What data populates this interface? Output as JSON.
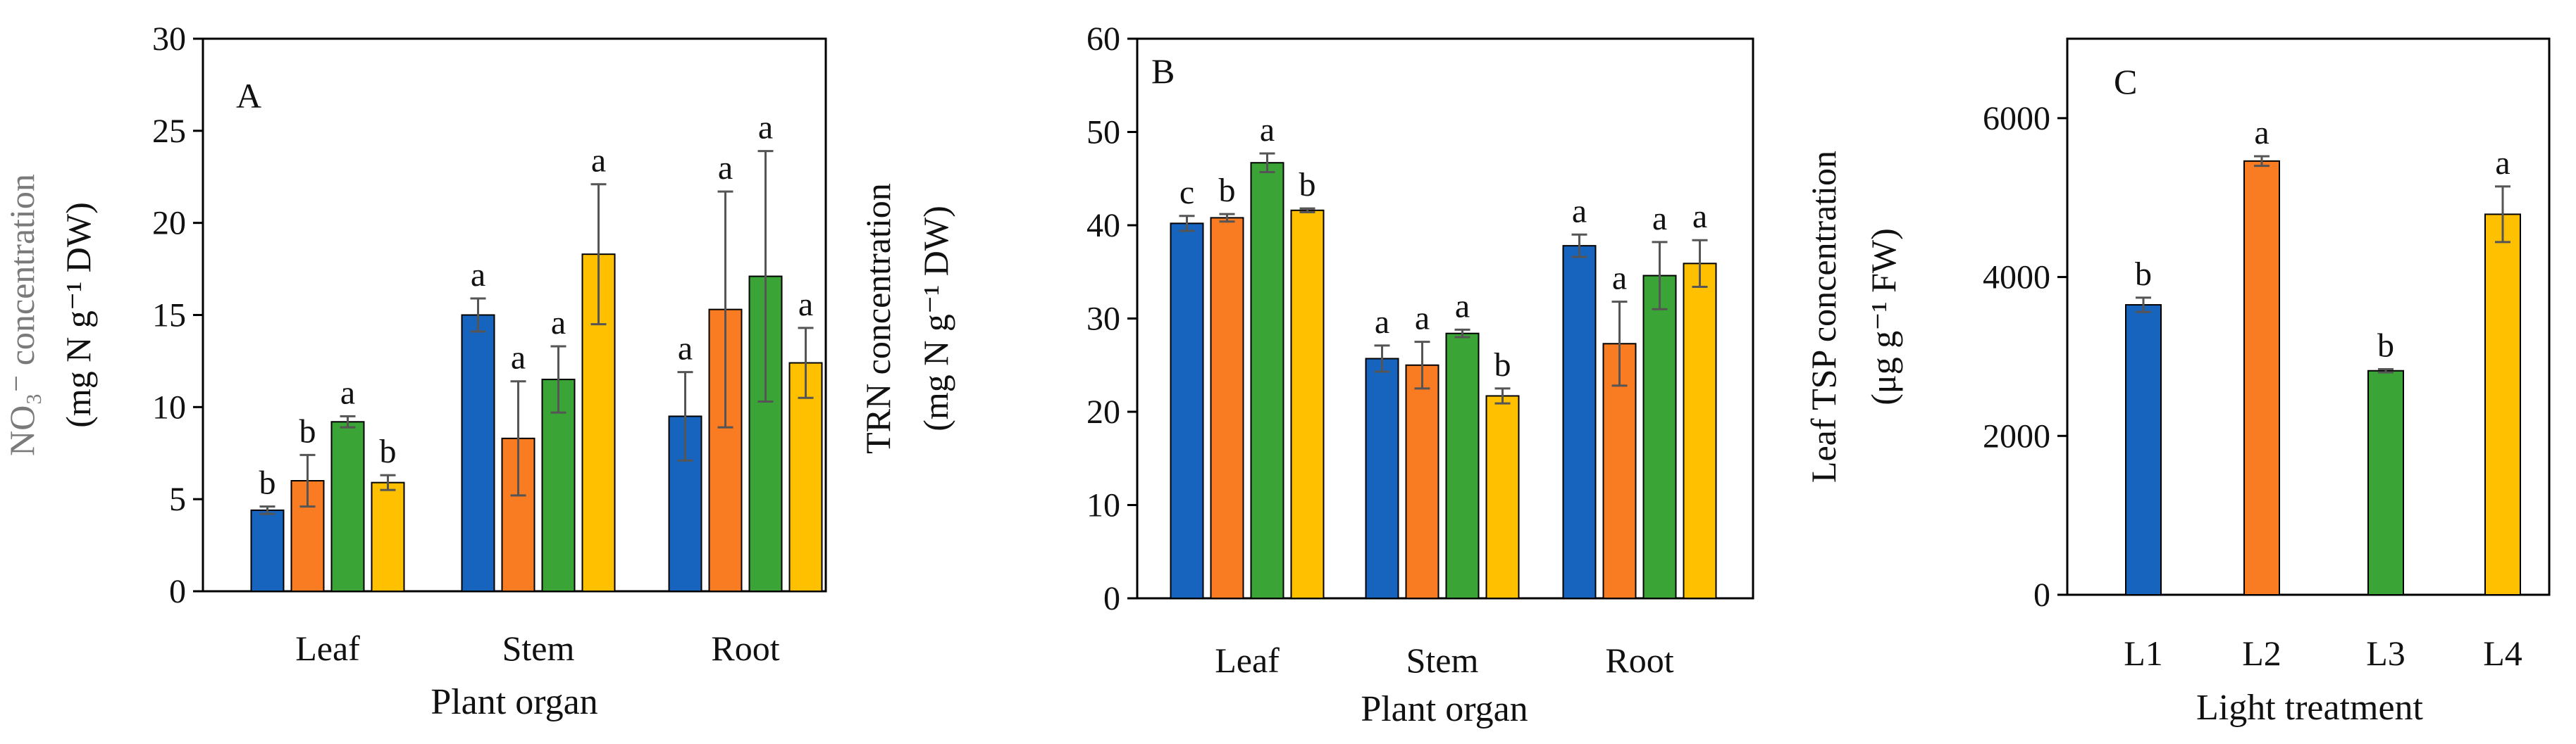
{
  "colors": {
    "L1": "#1764BE",
    "L2": "#F97B22",
    "L3": "#3AA536",
    "L4": "#FFC000",
    "axis": "#000000",
    "error_bar": "#555555",
    "ylabel_grey": "#7a7a7a"
  },
  "chart_data": [
    {
      "type": "bar",
      "panel": "A",
      "categories": [
        "Leaf",
        "Stem",
        "Root"
      ],
      "xlabel": "Plant organ",
      "ylabel_line1": "NO₃⁻ concentration",
      "ylabel_line2": "(mg N g⁻¹ DW)",
      "ylim": [
        0,
        30
      ],
      "yticks": [
        0,
        5,
        10,
        15,
        20,
        25,
        30
      ],
      "series": [
        {
          "name": "L1",
          "values": [
            4.4,
            15.0,
            9.5
          ],
          "errors": [
            0.2,
            0.9,
            2.4
          ],
          "letters": [
            "b",
            "a",
            "a"
          ]
        },
        {
          "name": "L2",
          "values": [
            6.0,
            8.3,
            15.3
          ],
          "errors": [
            1.4,
            3.1,
            6.4
          ],
          "letters": [
            "b",
            "a",
            "a"
          ]
        },
        {
          "name": "L3",
          "values": [
            9.2,
            11.5,
            17.1
          ],
          "errors": [
            0.3,
            1.8,
            6.8
          ],
          "letters": [
            "a",
            "a",
            "a"
          ]
        },
        {
          "name": "L4",
          "values": [
            5.9,
            18.3,
            12.4
          ],
          "errors": [
            0.4,
            3.8,
            1.9
          ],
          "letters": [
            "b",
            "a",
            "a"
          ]
        }
      ]
    },
    {
      "type": "bar",
      "panel": "B",
      "categories": [
        "Leaf",
        "Stem",
        "Root"
      ],
      "xlabel": "Plant organ",
      "ylabel_line1": "TRN concentration",
      "ylabel_line2": "(mg N g⁻¹ DW)",
      "ylim": [
        0,
        60
      ],
      "yticks": [
        0,
        10,
        20,
        30,
        40,
        50,
        60
      ],
      "series": [
        {
          "name": "L1",
          "values": [
            40.2,
            25.7,
            37.8
          ],
          "errors": [
            0.8,
            1.4,
            1.2
          ],
          "letters": [
            "c",
            "a",
            "a"
          ]
        },
        {
          "name": "L2",
          "values": [
            40.8,
            25.0,
            27.3
          ],
          "errors": [
            0.4,
            2.5,
            4.5
          ],
          "letters": [
            "b",
            "a",
            "a"
          ]
        },
        {
          "name": "L3",
          "values": [
            46.7,
            28.4,
            34.6
          ],
          "errors": [
            1.0,
            0.4,
            3.6
          ],
          "letters": [
            "a",
            "a",
            "a"
          ]
        },
        {
          "name": "L4",
          "values": [
            41.6,
            21.7,
            35.9
          ],
          "errors": [
            0.2,
            0.8,
            2.5
          ],
          "letters": [
            "b",
            "b",
            "a"
          ]
        }
      ]
    },
    {
      "type": "bar",
      "panel": "C",
      "categories": [
        "L1",
        "L2",
        "L3",
        "L4"
      ],
      "xlabel": "Light treatment",
      "ylabel_line1": "Leaf TSP concentration",
      "ylabel_line2": "(μg g⁻¹ FW)",
      "ylim": [
        0,
        7000
      ],
      "yticks": [
        0,
        2000,
        4000,
        6000
      ],
      "values": [
        3650,
        5460,
        2820,
        4790
      ],
      "errors": [
        90,
        60,
        20,
        350
      ],
      "letters": [
        "b",
        "a",
        "b",
        "a"
      ]
    }
  ]
}
